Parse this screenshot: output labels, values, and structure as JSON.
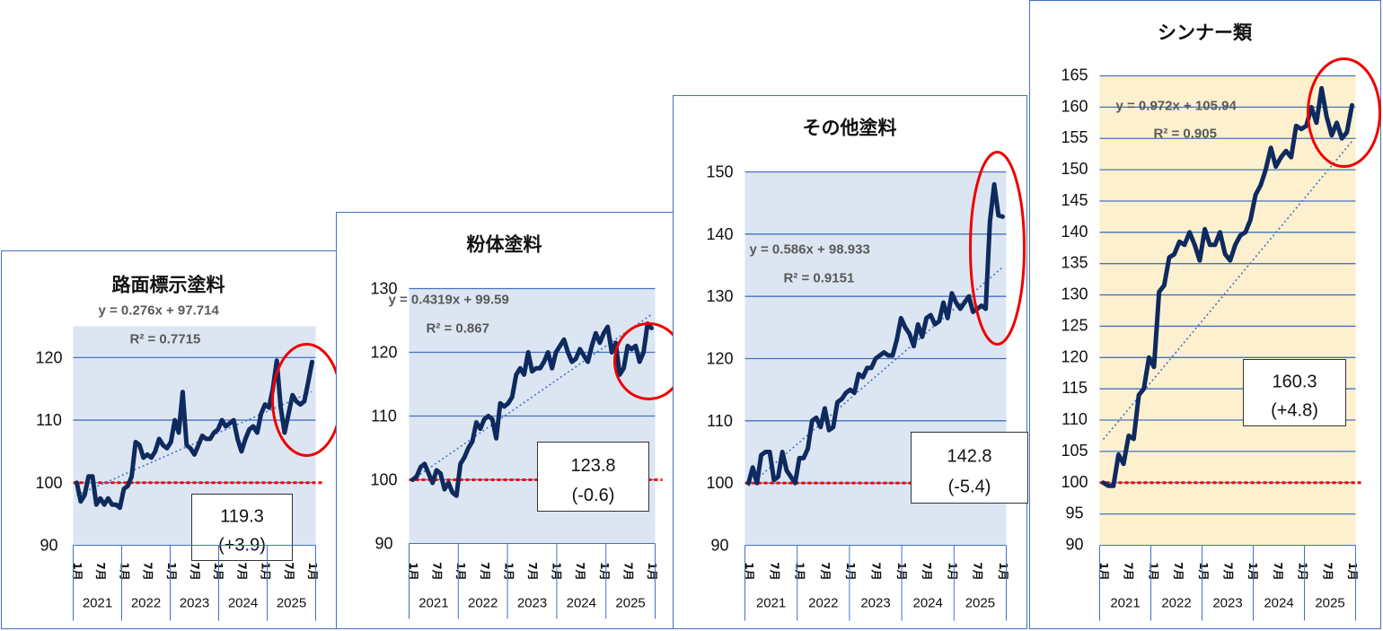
{
  "chart_data": [
    {
      "type": "line",
      "title": "路面標示塗料",
      "ylim": [
        90,
        125
      ],
      "yticks": [
        90,
        100,
        110,
        120
      ],
      "month_labels": [
        "1月",
        "7月"
      ],
      "years": [
        "2021",
        "2022",
        "2023",
        "2024",
        "2025"
      ],
      "series": [
        {
          "values": [
            100,
            97,
            98,
            101,
            101,
            96.5,
            97.5,
            96.5,
            97.5,
            96.5,
            96.5,
            96,
            99,
            99.5,
            101,
            106.5,
            106,
            104,
            104.5,
            104,
            105,
            107,
            106,
            105.5,
            106.5,
            110,
            108,
            114.5,
            106,
            105.5,
            104.5,
            106,
            107.5,
            107,
            107,
            108,
            108.5,
            110,
            109,
            109.5,
            110,
            107,
            105,
            107,
            108.5,
            109,
            108,
            111,
            112.5,
            112,
            115,
            119.5,
            112,
            108,
            111,
            114,
            113,
            112.5,
            113,
            116,
            119.3
          ]
        }
      ],
      "trendline": {
        "slope": 0.276,
        "intercept": 97.714,
        "equation": "y = 0.276x + 97.714",
        "r2": "R² = 0.7715"
      },
      "reference_line": 100,
      "value_box": {
        "line1": "119.3",
        "line2": "(+3.9)"
      },
      "colors": {
        "plot_bg": "#dce6f2",
        "line": "#0e2a5e",
        "trend": "#4472c4",
        "ref": "#ff0000",
        "circle": "#ee0000"
      }
    },
    {
      "type": "line",
      "title": "粉体塗料",
      "ylim": [
        90,
        130
      ],
      "yticks": [
        90,
        100,
        110,
        120,
        130
      ],
      "month_labels": [
        "1月",
        "7月"
      ],
      "years": [
        "2021",
        "2022",
        "2023",
        "2024",
        "2025"
      ],
      "series": [
        {
          "values": [
            100,
            100.5,
            102,
            102.5,
            101,
            99.5,
            101.5,
            101,
            98.5,
            99.5,
            98,
            97.5,
            102.5,
            103.5,
            105,
            106,
            109,
            108,
            109.5,
            110,
            109.5,
            106.5,
            112,
            111.5,
            112,
            113,
            116.5,
            117.5,
            116.5,
            120,
            117,
            117.5,
            117.5,
            118.5,
            120,
            117.5,
            120,
            121,
            122,
            120,
            118.5,
            119,
            120.5,
            119.5,
            118.5,
            121,
            123,
            121.5,
            123,
            124,
            120,
            121.5,
            116.5,
            117.5,
            121,
            120.5,
            121,
            118.5,
            120,
            124.5,
            123.8
          ]
        }
      ],
      "trendline": {
        "slope": 0.4319,
        "intercept": 99.59,
        "equation": "y = 0.4319x + 99.59",
        "r2": "R² = 0.867"
      },
      "reference_line": 100,
      "value_box": {
        "line1": "123.8",
        "line2": "(-0.6)"
      },
      "colors": {
        "plot_bg": "#dce6f2",
        "line": "#0e2a5e",
        "trend": "#4472c4",
        "ref": "#ff0000",
        "circle": "#ee0000"
      }
    },
    {
      "type": "line",
      "title": "その他塗料",
      "ylim": [
        90,
        150
      ],
      "yticks": [
        90,
        100,
        110,
        120,
        130,
        140,
        150
      ],
      "month_labels": [
        "1月",
        "7月"
      ],
      "years": [
        "2021",
        "2022",
        "2023",
        "2024",
        "2025"
      ],
      "series": [
        {
          "values": [
            100,
            102.5,
            100,
            104.5,
            105,
            105,
            100.5,
            101,
            105,
            102,
            101,
            100,
            104,
            104,
            105.5,
            110,
            110.5,
            109,
            112,
            108.5,
            109,
            113,
            113.5,
            114.5,
            115,
            114.5,
            117.5,
            117,
            118.5,
            118.5,
            120,
            120.5,
            121,
            120.5,
            120.5,
            123,
            126.5,
            125,
            124,
            122,
            125.5,
            123.5,
            126.5,
            127,
            125.5,
            126,
            129,
            126.5,
            130.5,
            129,
            128,
            129,
            130,
            127.5,
            128,
            128.5,
            128,
            142,
            148,
            143,
            142.8
          ]
        }
      ],
      "trendline": {
        "slope": 0.586,
        "intercept": 98.933,
        "equation": "y = 0.586x + 98.933",
        "r2": "R² = 0.9151"
      },
      "reference_line": 100,
      "value_box": {
        "line1": "142.8",
        "line2": "(-5.4)"
      },
      "colors": {
        "plot_bg": "#dce6f2",
        "line": "#0e2a5e",
        "trend": "#4472c4",
        "ref": "#ff0000",
        "circle": "#ee0000"
      }
    },
    {
      "type": "line",
      "title": "シンナー類",
      "ylim": [
        90,
        165
      ],
      "yticks": [
        90,
        95,
        100,
        105,
        110,
        115,
        120,
        125,
        130,
        135,
        140,
        145,
        150,
        155,
        160,
        165
      ],
      "month_labels": [
        "1月",
        "7月"
      ],
      "years": [
        "2021",
        "2022",
        "2023",
        "2024",
        "2025"
      ],
      "series": [
        {
          "values": [
            100,
            99.5,
            99.5,
            104.5,
            103,
            107.5,
            107,
            114,
            115,
            120,
            118.5,
            130.5,
            131.5,
            136,
            136.5,
            138.5,
            138,
            140,
            138,
            135.5,
            140.5,
            138,
            138,
            140,
            136.5,
            135.5,
            138,
            139.5,
            140,
            142,
            146,
            147.5,
            150,
            153.5,
            150.5,
            152,
            153,
            152,
            157,
            156.5,
            157,
            160,
            157.5,
            163,
            158.5,
            155.5,
            157.5,
            155,
            156,
            160.3
          ]
        }
      ],
      "trendline": {
        "slope": 0.972,
        "intercept": 105.94,
        "equation": "y = 0.972x + 105.94",
        "r2": "R² = 0.905"
      },
      "reference_line": 100,
      "value_box": {
        "line1": "160.3",
        "line2": "(+4.8)"
      },
      "colors": {
        "plot_bg": "#fdf0cf",
        "line": "#0e2a5e",
        "trend": "#4472c4",
        "ref": "#ff0000",
        "circle": "#ee0000"
      }
    }
  ]
}
